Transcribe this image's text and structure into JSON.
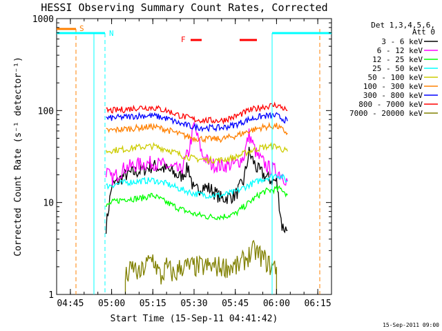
{
  "chart_data": {
    "type": "line",
    "title": "HESSI Observing Summary Count Rates, Corrected",
    "xlabel": "Start Time (15-Sep-11 04:41:42)",
    "ylabel": "Corrected Count Rate (s⁻¹ detector⁻¹)",
    "x_unit": "minutes of day",
    "xlim": [
      "04:40",
      "06:20"
    ],
    "ylim": [
      1,
      1000
    ],
    "y_scale": "log",
    "x_ticks": [
      "04:45",
      "05:00",
      "05:15",
      "05:30",
      "05:45",
      "06:00",
      "06:15"
    ],
    "y_ticks": [
      "1",
      "10",
      "100",
      "1000"
    ],
    "legend_title": [
      "Det 1,3,4,5,6,",
      "Att 0"
    ],
    "legend_position": "right",
    "timestamp": "15-Sep-2011 09:00",
    "flag_labels": {
      "S": "S",
      "N": "N",
      "F": "F"
    },
    "series": [
      {
        "name": "3 - 6 keV",
        "color": "#000000",
        "x": [
          "04:58",
          "05:00",
          "05:05",
          "05:10",
          "05:15",
          "05:20",
          "05:25",
          "05:28",
          "05:30",
          "05:33",
          "05:36",
          "05:40",
          "05:45",
          "05:48",
          "05:50",
          "05:53",
          "05:57",
          "06:00",
          "06:02",
          "06:04"
        ],
        "y": [
          5.5,
          15,
          20,
          22,
          25,
          23,
          19,
          24,
          13,
          15,
          14,
          11,
          12,
          17,
          35,
          23,
          18,
          17,
          5.5,
          5
        ]
      },
      {
        "name": "6 - 12 keV",
        "color": "#ff00ff",
        "x": [
          "04:58",
          "05:00",
          "05:05",
          "05:10",
          "05:15",
          "05:20",
          "05:25",
          "05:28",
          "05:30",
          "05:33",
          "05:36",
          "05:40",
          "05:45",
          "05:48",
          "05:50",
          "05:53",
          "05:57",
          "06:00",
          "06:02",
          "06:04"
        ],
        "y": [
          22,
          18,
          24,
          26,
          27,
          25,
          22,
          35,
          70,
          33,
          26,
          25,
          26,
          31,
          55,
          32,
          24,
          22,
          20,
          17
        ]
      },
      {
        "name": "12 - 25 keV",
        "color": "#00ff00",
        "x": [
          "04:58",
          "05:00",
          "05:05",
          "05:10",
          "05:15",
          "05:20",
          "05:25",
          "05:30",
          "05:35",
          "05:40",
          "05:45",
          "05:50",
          "05:55",
          "06:00",
          "06:02",
          "06:04"
        ],
        "y": [
          9,
          10,
          11,
          11,
          12,
          10,
          8.5,
          7.5,
          7,
          7,
          7.5,
          10,
          13,
          14,
          14,
          12
        ]
      },
      {
        "name": "25 - 50 keV",
        "color": "#00ffff",
        "x": [
          "04:58",
          "05:00",
          "05:05",
          "05:10",
          "05:15",
          "05:20",
          "05:25",
          "05:30",
          "05:35",
          "05:40",
          "05:45",
          "05:50",
          "05:55",
          "06:00",
          "06:02",
          "06:04"
        ],
        "y": [
          15,
          15.5,
          16.5,
          17,
          17.5,
          16,
          14,
          12.5,
          12,
          12,
          13,
          15.5,
          18,
          20,
          19,
          17
        ]
      },
      {
        "name": "50 - 100 keV",
        "color": "#cccc00",
        "x": [
          "04:58",
          "05:00",
          "05:05",
          "05:10",
          "05:15",
          "05:20",
          "05:25",
          "05:30",
          "05:35",
          "05:40",
          "05:45",
          "05:50",
          "05:55",
          "06:00",
          "06:02",
          "06:04"
        ],
        "y": [
          36,
          37,
          38,
          40,
          41,
          38,
          33,
          30,
          29,
          29,
          31,
          36,
          40,
          41,
          38,
          36
        ]
      },
      {
        "name": "100 - 300 keV",
        "color": "#ff8000",
        "x": [
          "04:58",
          "05:00",
          "05:05",
          "05:10",
          "05:15",
          "05:20",
          "05:25",
          "05:30",
          "05:35",
          "05:40",
          "05:45",
          "05:50",
          "05:55",
          "06:00",
          "06:02",
          "06:04"
        ],
        "y": [
          60,
          61,
          63,
          65,
          67,
          62,
          55,
          50,
          49,
          49,
          53,
          60,
          66,
          68,
          62,
          57
        ]
      },
      {
        "name": "300 - 800 keV",
        "color": "#0000ff",
        "x": [
          "04:58",
          "05:00",
          "05:05",
          "05:10",
          "05:15",
          "05:20",
          "05:25",
          "05:30",
          "05:35",
          "05:40",
          "05:45",
          "05:50",
          "05:55",
          "06:00",
          "06:02",
          "06:04"
        ],
        "y": [
          82,
          83,
          85,
          88,
          88,
          82,
          72,
          66,
          65,
          65,
          70,
          80,
          87,
          88,
          82,
          77
        ]
      },
      {
        "name": "800 - 7000 keV",
        "color": "#ff0000",
        "x": [
          "04:58",
          "05:00",
          "05:05",
          "05:10",
          "05:15",
          "05:20",
          "05:25",
          "05:30",
          "05:35",
          "05:40",
          "05:45",
          "05:50",
          "05:55",
          "06:00",
          "06:02",
          "06:04"
        ],
        "y": [
          100,
          100,
          103,
          108,
          108,
          100,
          88,
          80,
          78,
          78,
          86,
          100,
          110,
          115,
          108,
          100
        ]
      },
      {
        "name": "7000 - 20000 keV",
        "color": "#808000",
        "x": [
          "05:05",
          "05:08",
          "05:10",
          "05:12",
          "05:15",
          "05:18",
          "05:20",
          "05:23",
          "05:25",
          "05:46",
          "05:49",
          "05:52",
          "05:55",
          "05:58",
          "06:00"
        ],
        "y": [
          1.5,
          2,
          1.6,
          2,
          2.5,
          1.5,
          2,
          1.6,
          2,
          2,
          2.5,
          3,
          2.5,
          2,
          2
        ]
      }
    ]
  }
}
